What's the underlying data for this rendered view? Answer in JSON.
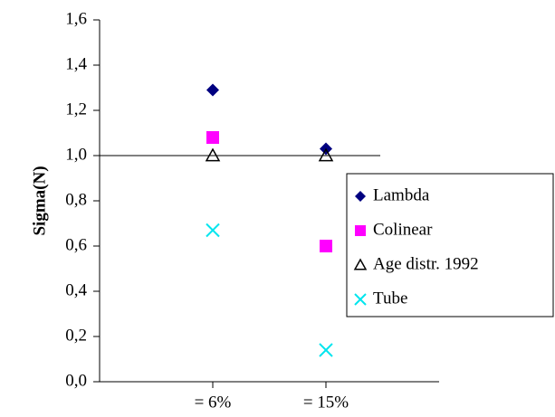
{
  "chart_data": {
    "type": "scatter",
    "y_label": "Sigma(N)",
    "categories": [
      "= 6%",
      "= 15%"
    ],
    "series": [
      {
        "name": "Lambda",
        "color": "#000080",
        "marker": "diamond",
        "values": [
          1.29,
          1.03
        ]
      },
      {
        "name": "Colinear",
        "color": "#ff00ff",
        "marker": "square",
        "values": [
          1.08,
          0.6
        ]
      },
      {
        "name": "Age distr. 1992",
        "color": "#000000",
        "marker": "triangle",
        "values": [
          1.0,
          1.0
        ]
      },
      {
        "name": "Tube",
        "color": "#00e5ee",
        "marker": "x",
        "values": [
          0.67,
          0.14
        ]
      }
    ],
    "ylim": [
      0,
      1.6
    ],
    "yticks": [
      {
        "value": 0,
        "label": "0,0"
      },
      {
        "value": 0.2,
        "label": "0,2"
      },
      {
        "value": 0.4,
        "label": "0,4"
      },
      {
        "value": 0.6,
        "label": "0,6"
      },
      {
        "value": 0.8,
        "label": "0,8"
      },
      {
        "value": 1.0,
        "label": "1,0"
      },
      {
        "value": 1.2,
        "label": "1,2"
      },
      {
        "value": 1.4,
        "label": "1,4"
      },
      {
        "value": 1.6,
        "label": "1,6"
      }
    ],
    "reference_line": 1.0,
    "legend": "right"
  }
}
